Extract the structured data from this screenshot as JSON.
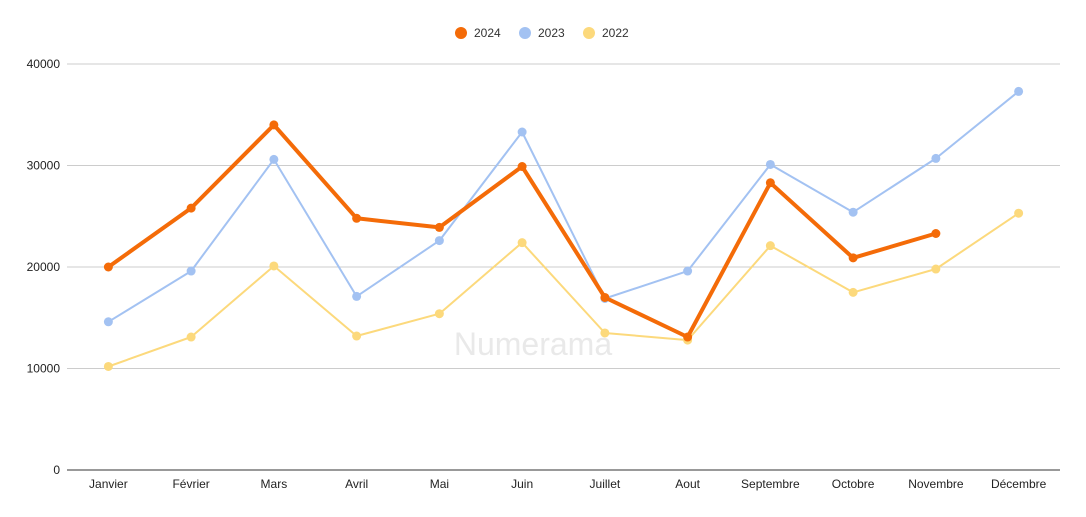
{
  "watermark": "Numerama",
  "chart_data": {
    "type": "line",
    "categories": [
      "Janvier",
      "Février",
      "Mars",
      "Avril",
      "Mai",
      "Juin",
      "Juillet",
      "Aout",
      "Septembre",
      "Octobre",
      "Novembre",
      "Décembre"
    ],
    "series": [
      {
        "name": "2024",
        "color": "#f46b08",
        "values": [
          20000,
          25800,
          34000,
          24800,
          23900,
          29900,
          17000,
          13100,
          28300,
          20900,
          23300,
          null
        ]
      },
      {
        "name": "2023",
        "color": "#a3c2f2",
        "values": [
          14600,
          19600,
          30600,
          17100,
          22600,
          33300,
          16900,
          19600,
          30100,
          25400,
          30700,
          37300
        ]
      },
      {
        "name": "2022",
        "color": "#fcd97c",
        "values": [
          10200,
          13100,
          20100,
          13200,
          15400,
          22400,
          13500,
          12800,
          22100,
          17500,
          19800,
          25300
        ]
      }
    ],
    "y_ticks": [
      "0",
      "10000",
      "20000",
      "30000",
      "40000"
    ],
    "ylim": [
      0,
      40000
    ],
    "grid": true,
    "legend_position": "top-center"
  }
}
